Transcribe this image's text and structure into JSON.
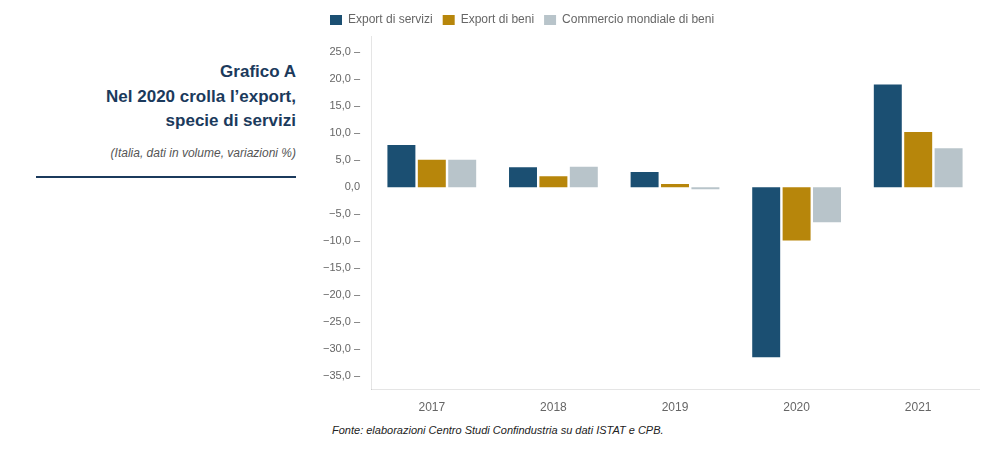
{
  "chart_data": {
    "type": "bar",
    "title": [
      "Grafico A",
      "Nel 2020 crolla l’export,",
      "specie di servizi"
    ],
    "subtitle": "(Italia, dati in volume, variazioni %)",
    "annotations": [
      "Fonte: elaborazioni Centro Studi Confindustria su dati ISTAT e CPB."
    ],
    "categories": [
      "2017",
      "2018",
      "2019",
      "2020",
      "2021"
    ],
    "series": [
      {
        "name": "Export di servizi",
        "color": "#1b4f72",
        "values": [
          7.8,
          3.7,
          2.8,
          -31.5,
          19.0
        ]
      },
      {
        "name": "Export di beni",
        "color": "#b7860b",
        "values": [
          5.1,
          2.0,
          0.6,
          -9.9,
          10.2
        ]
      },
      {
        "name": "Commercio mondiale di beni",
        "color": "#b8c4ca",
        "values": [
          5.1,
          3.8,
          -0.4,
          -6.5,
          7.2
        ]
      }
    ],
    "ylim": [
      -37.5,
      28
    ],
    "yticks": [
      {
        "value": -35,
        "label": "−35,0 –"
      },
      {
        "value": -30,
        "label": "−30,0 –"
      },
      {
        "value": -25,
        "label": "−25,0 –"
      },
      {
        "value": -20,
        "label": "−20,0 –"
      },
      {
        "value": -15,
        "label": "−15,0 –"
      },
      {
        "value": -10,
        "label": "−10,0 –"
      },
      {
        "value": -5,
        "label": "−5,0 –"
      },
      {
        "value": 0,
        "label": "0,0"
      },
      {
        "value": 5,
        "label": "5,0 –"
      },
      {
        "value": 10,
        "label": "10,0 –"
      },
      {
        "value": 15,
        "label": "15,0 –"
      },
      {
        "value": 20,
        "label": "20,0 –"
      },
      {
        "value": 25,
        "label": "25,0 –"
      }
    ],
    "grid": false,
    "legend": "upper left"
  }
}
